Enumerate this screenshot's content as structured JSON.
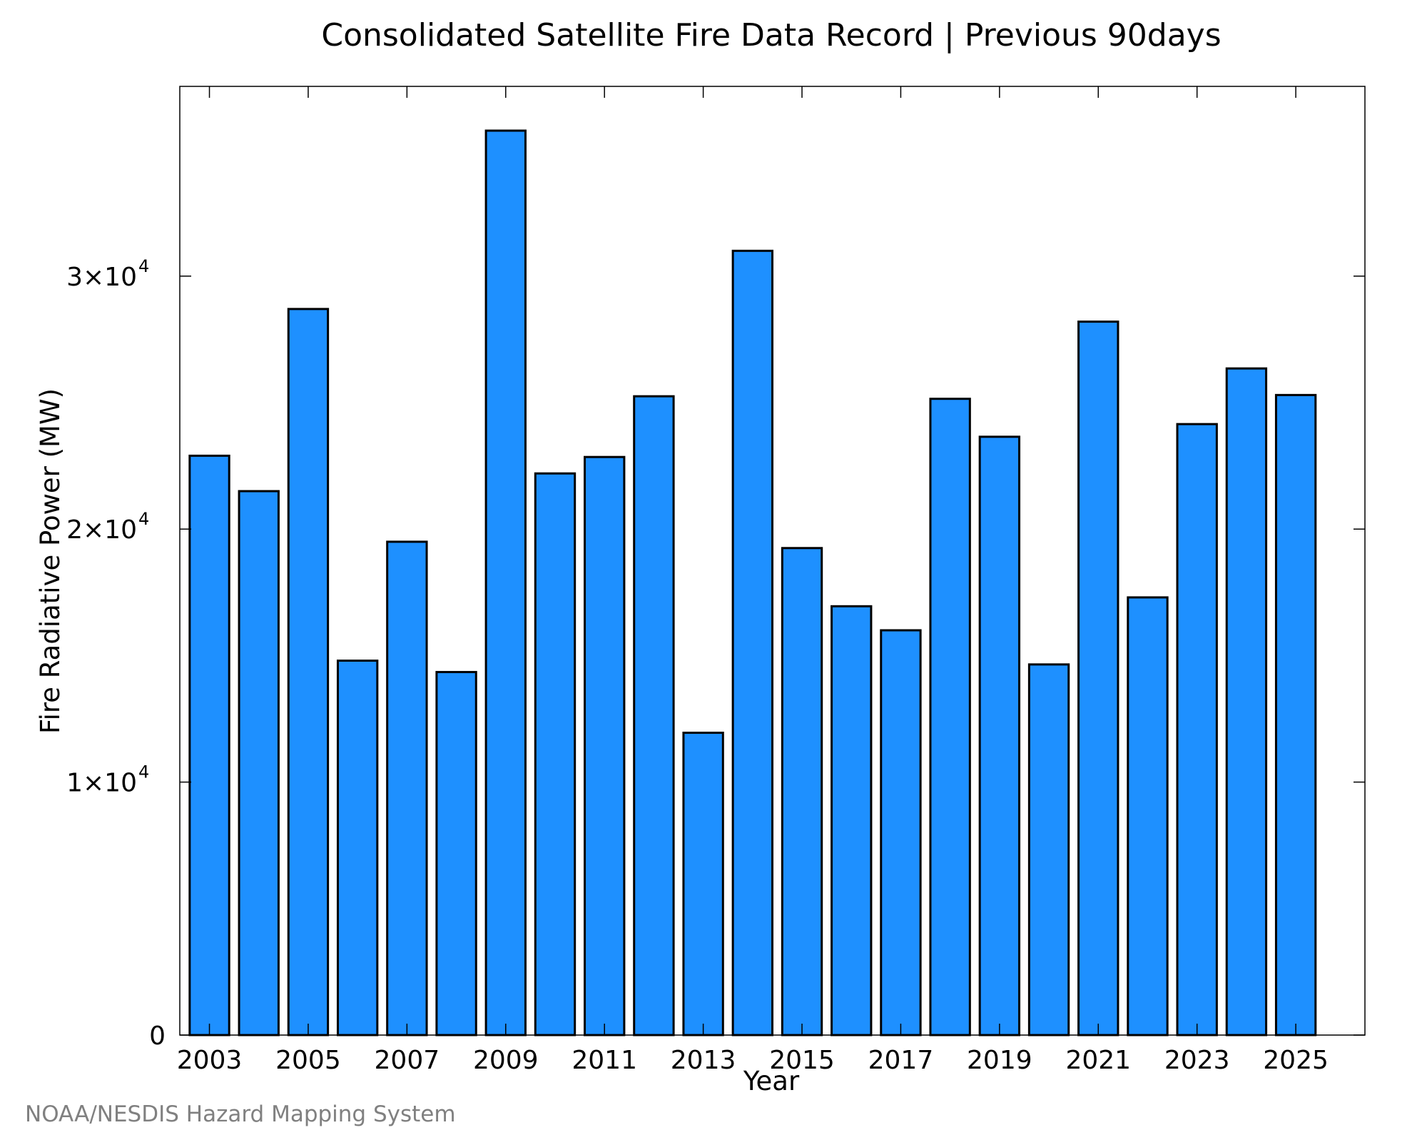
{
  "chart_data": {
    "type": "bar",
    "title": "Consolidated Satellite Fire Data Record | Previous 90days",
    "xlabel": "Year",
    "ylabel": "Fire Radiative Power (MW)",
    "categories": [
      "2003",
      "2004",
      "2005",
      "2006",
      "2007",
      "2008",
      "2009",
      "2010",
      "2011",
      "2012",
      "2013",
      "2014",
      "2015",
      "2016",
      "2017",
      "2018",
      "2019",
      "2020",
      "2021",
      "2022",
      "2023",
      "2024",
      "2025"
    ],
    "values": [
      22900,
      21500,
      28700,
      14800,
      19500,
      14350,
      35750,
      22200,
      22850,
      25250,
      11950,
      31000,
      19250,
      16950,
      16000,
      25150,
      23650,
      14650,
      28200,
      17300,
      24150,
      26350,
      25300
    ],
    "x_tick_labels": [
      "2003",
      "2005",
      "2007",
      "2009",
      "2011",
      "2013",
      "2015",
      "2017",
      "2019",
      "2021",
      "2023",
      "2025"
    ],
    "y_ticks": [
      {
        "value": 0,
        "mantissa": "0",
        "exponent": ""
      },
      {
        "value": 10000,
        "mantissa": "1×10",
        "exponent": "4"
      },
      {
        "value": 20000,
        "mantissa": "2×10",
        "exponent": "4"
      },
      {
        "value": 30000,
        "mantissa": "3×10",
        "exponent": "4"
      }
    ],
    "ylim": [
      0,
      37500
    ],
    "xlim": [
      2002.4,
      2026.4
    ],
    "grid": false,
    "legend": false,
    "bar_color": "#1e90ff",
    "edge_color": "#000000"
  },
  "credit": "NOAA/NESDIS Hazard Mapping System"
}
